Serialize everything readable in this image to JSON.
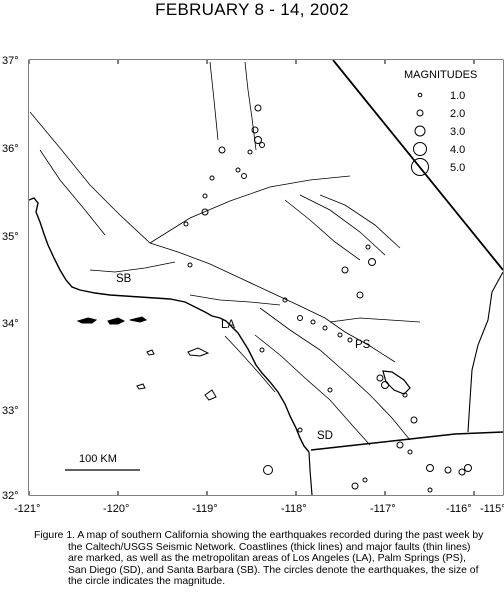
{
  "title": "FEBRUARY 8 - 14, 2002",
  "legend": {
    "title": "MAGNITUDES",
    "items": [
      "1.0",
      "2.0",
      "3.0",
      "4.0",
      "5.0"
    ]
  },
  "axes": {
    "lat_labels": [
      "37°",
      "36°",
      "35°",
      "34°",
      "33°",
      "32°"
    ],
    "lon_labels": [
      "-121°",
      "-120°",
      "-119°",
      "-118°",
      "-117°",
      "-116°",
      "-115°"
    ]
  },
  "places": {
    "sb": "SB",
    "la": "LA",
    "ps": "PS",
    "sd": "SD"
  },
  "scale_bar": "100 KM",
  "caption": "Figure 1. A map of southern California showing the earthquakes recorded during the past week by the Caltech/USGS Seismic Network.  Coastlines (thick lines) and major faults (thin lines) are marked, as well as the metropolitan areas of Los Angeles (LA), Palm Springs (PS), San Diego (SD), and Santa Barbara (SB).  The circles denote the earthquakes, the size of the circle indicates the magnitude."
}
